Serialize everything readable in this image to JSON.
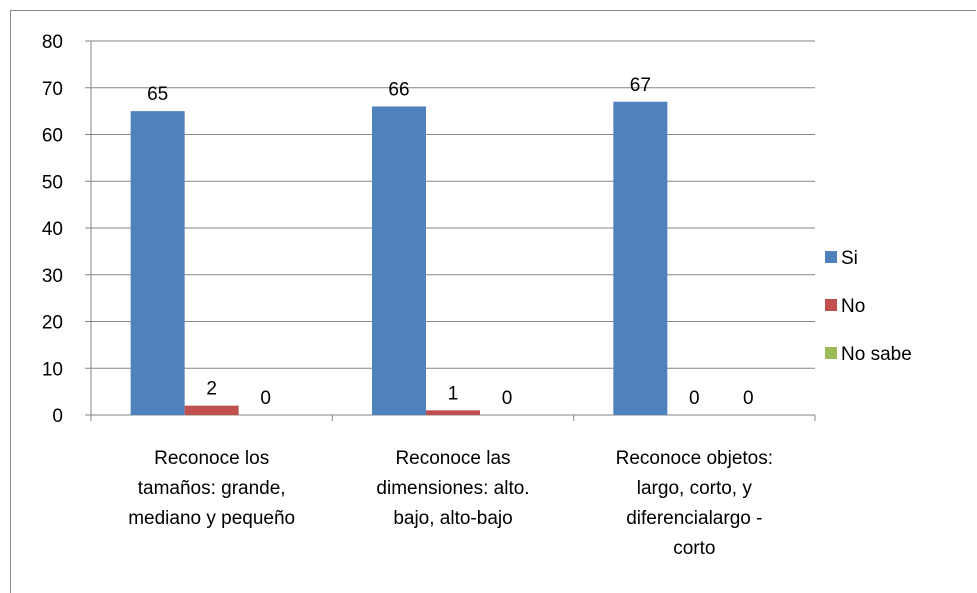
{
  "chart_data": {
    "type": "bar",
    "title": "",
    "xlabel": "",
    "ylabel": "",
    "ylim": [
      0,
      80
    ],
    "yticks": [
      0,
      10,
      20,
      30,
      40,
      50,
      60,
      70,
      80
    ],
    "grid": true,
    "legend_position": "right",
    "categories": [
      [
        "Reconoce los",
        "tamaños: grande,",
        "mediano y pequeño"
      ],
      [
        "Reconoce las",
        "dimensiones: alto.",
        "bajo, alto-bajo"
      ],
      [
        "Reconoce objetos:",
        "largo, corto, y",
        "diferencialargo -",
        "corto"
      ]
    ],
    "series": [
      {
        "name": "Si",
        "color": "#4f81bd",
        "values": [
          65,
          66,
          67
        ]
      },
      {
        "name": "No",
        "color": "#c0504d",
        "values": [
          2,
          1,
          0
        ]
      },
      {
        "name": "No sabe",
        "color": "#9bbb59",
        "values": [
          0,
          0,
          0
        ]
      }
    ]
  }
}
